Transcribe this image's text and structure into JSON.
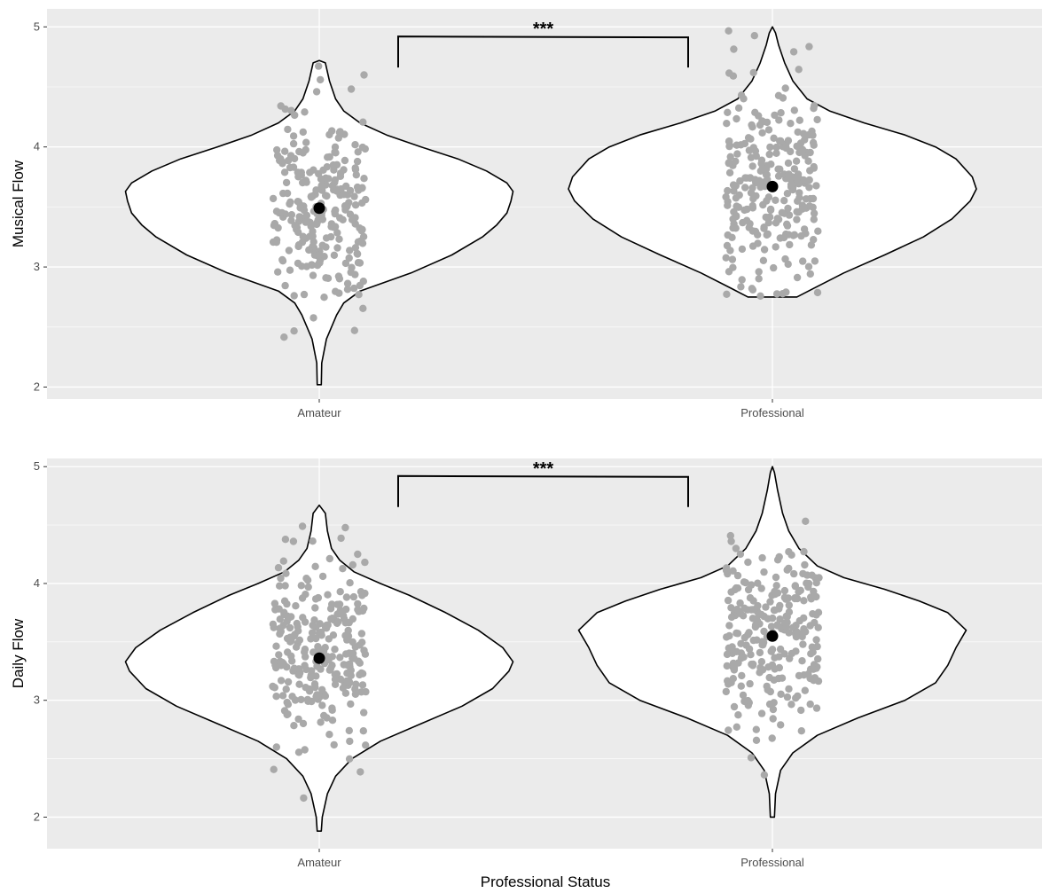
{
  "colors": {
    "panel_bg": "#ebebeb",
    "grid_major": "#ffffff",
    "violin_fill": "#ffffff",
    "violin_stroke": "#000000",
    "jitter_point": "#a9a9a9",
    "mean_point": "#000000"
  },
  "x_axis_title": "Professional Status",
  "chart_data": [
    {
      "type": "violin",
      "ylabel": "Musical Flow",
      "categories": [
        "Amateur",
        "Professional"
      ],
      "ylim": [
        1.9,
        5.15
      ],
      "yticks": [
        2,
        3,
        4,
        5
      ],
      "grid": true,
      "means": [
        3.49,
        3.67
      ],
      "significance": {
        "label": "***",
        "between": [
          "Amateur",
          "Professional"
        ],
        "y_level": 4.92
      },
      "violins": [
        {
          "category": "Amateur",
          "min": 2.02,
          "max": 4.72,
          "profile": [
            [
              2.02,
              0.01
            ],
            [
              2.2,
              0.012
            ],
            [
              2.4,
              0.035
            ],
            [
              2.6,
              0.085
            ],
            [
              2.7,
              0.12
            ],
            [
              2.8,
              0.2
            ],
            [
              2.95,
              0.45
            ],
            [
              3.1,
              0.65
            ],
            [
              3.25,
              0.8
            ],
            [
              3.35,
              0.87
            ],
            [
              3.45,
              0.92
            ],
            [
              3.55,
              0.94
            ],
            [
              3.63,
              0.95
            ],
            [
              3.7,
              0.92
            ],
            [
              3.8,
              0.82
            ],
            [
              3.9,
              0.68
            ],
            [
              4.0,
              0.5
            ],
            [
              4.1,
              0.33
            ],
            [
              4.2,
              0.2
            ],
            [
              4.3,
              0.12
            ],
            [
              4.4,
              0.08
            ],
            [
              4.55,
              0.05
            ],
            [
              4.7,
              0.03
            ],
            [
              4.72,
              0.0
            ]
          ]
        },
        {
          "category": "Professional",
          "min": 2.75,
          "max": 5.0,
          "profile": [
            [
              2.75,
              0.12
            ],
            [
              2.82,
              0.2
            ],
            [
              2.95,
              0.35
            ],
            [
              3.1,
              0.55
            ],
            [
              3.25,
              0.74
            ],
            [
              3.4,
              0.88
            ],
            [
              3.55,
              0.97
            ],
            [
              3.65,
              1.0
            ],
            [
              3.75,
              0.98
            ],
            [
              3.9,
              0.9
            ],
            [
              4.0,
              0.8
            ],
            [
              4.1,
              0.65
            ],
            [
              4.2,
              0.45
            ],
            [
              4.3,
              0.28
            ],
            [
              4.4,
              0.17
            ],
            [
              4.55,
              0.1
            ],
            [
              4.7,
              0.06
            ],
            [
              4.85,
              0.03
            ],
            [
              4.95,
              0.015
            ],
            [
              5.0,
              0.0
            ]
          ]
        }
      ]
    },
    {
      "type": "violin",
      "ylabel": "Daily Flow",
      "categories": [
        "Amateur",
        "Professional"
      ],
      "ylim": [
        1.73,
        5.07
      ],
      "yticks": [
        2,
        3,
        4,
        5
      ],
      "grid": true,
      "means": [
        3.36,
        3.55
      ],
      "significance": {
        "label": "***",
        "between": [
          "Amateur",
          "Professional"
        ],
        "y_level": 4.92
      },
      "violins": [
        {
          "category": "Amateur",
          "min": 1.88,
          "max": 4.67,
          "profile": [
            [
              1.88,
              0.01
            ],
            [
              2.0,
              0.015
            ],
            [
              2.2,
              0.04
            ],
            [
              2.35,
              0.08
            ],
            [
              2.5,
              0.16
            ],
            [
              2.65,
              0.3
            ],
            [
              2.8,
              0.5
            ],
            [
              2.95,
              0.7
            ],
            [
              3.1,
              0.85
            ],
            [
              3.25,
              0.93
            ],
            [
              3.33,
              0.95
            ],
            [
              3.45,
              0.9
            ],
            [
              3.6,
              0.78
            ],
            [
              3.75,
              0.62
            ],
            [
              3.9,
              0.44
            ],
            [
              4.0,
              0.3
            ],
            [
              4.1,
              0.17
            ],
            [
              4.2,
              0.1
            ],
            [
              4.3,
              0.06
            ],
            [
              4.45,
              0.04
            ],
            [
              4.6,
              0.03
            ],
            [
              4.67,
              0.0
            ]
          ]
        },
        {
          "category": "Professional",
          "min": 2.0,
          "max": 5.0,
          "profile": [
            [
              2.0,
              0.01
            ],
            [
              2.2,
              0.015
            ],
            [
              2.4,
              0.04
            ],
            [
              2.55,
              0.1
            ],
            [
              2.7,
              0.22
            ],
            [
              2.85,
              0.42
            ],
            [
              3.0,
              0.65
            ],
            [
              3.15,
              0.8
            ],
            [
              3.3,
              0.86
            ],
            [
              3.45,
              0.9
            ],
            [
              3.6,
              0.95
            ],
            [
              3.75,
              0.86
            ],
            [
              3.85,
              0.72
            ],
            [
              3.95,
              0.55
            ],
            [
              4.05,
              0.35
            ],
            [
              4.15,
              0.22
            ],
            [
              4.3,
              0.13
            ],
            [
              4.45,
              0.08
            ],
            [
              4.6,
              0.05
            ],
            [
              4.8,
              0.025
            ],
            [
              4.95,
              0.01
            ],
            [
              5.0,
              0.0
            ]
          ]
        }
      ]
    }
  ]
}
